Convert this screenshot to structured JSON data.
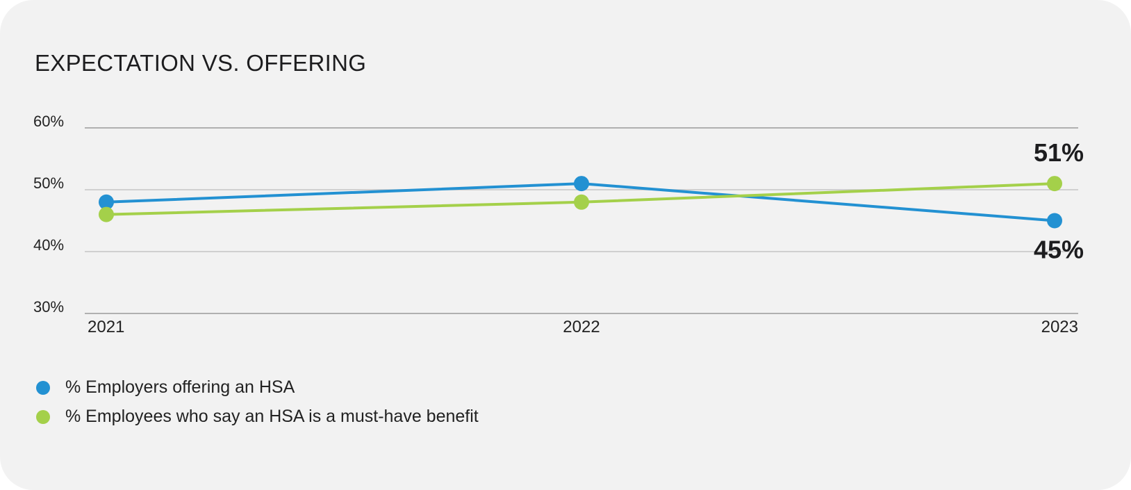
{
  "chart_data": {
    "type": "line",
    "title": "EXPECTATION VS. OFFERING",
    "categories": [
      "2021",
      "2022",
      "2023"
    ],
    "ylim": [
      30,
      60
    ],
    "yticks": [
      "60%",
      "50%",
      "40%",
      "30%"
    ],
    "ytick_values": [
      60,
      50,
      40,
      30
    ],
    "grid": true,
    "legend_position": "bottom-left",
    "series": [
      {
        "name": "% Employers offering an HSA",
        "values": [
          48,
          51,
          45
        ],
        "color": "#2391d2",
        "end_label": "45%"
      },
      {
        "name": "% Employees who say an HSA is a must-have benefit",
        "values": [
          46,
          48,
          51
        ],
        "color": "#a4d04a",
        "end_label": "51%"
      }
    ]
  }
}
